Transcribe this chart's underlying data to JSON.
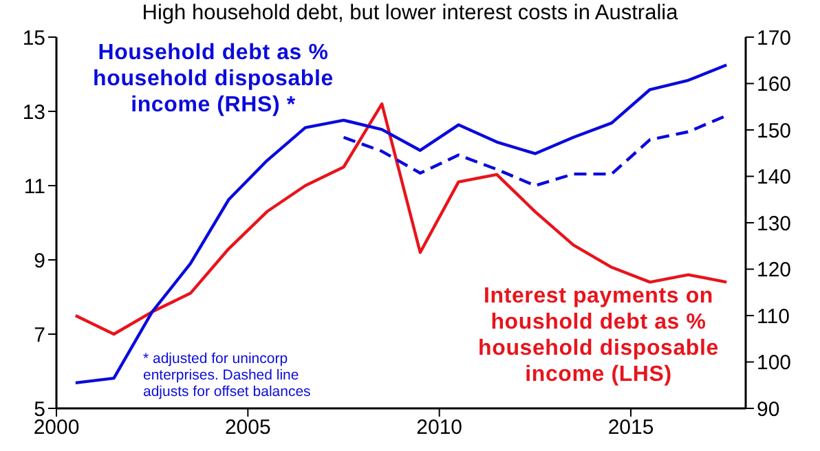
{
  "chart_data": {
    "type": "line",
    "title": "High household debt, but lower interest costs in Australia",
    "xlim": [
      2000,
      2018
    ],
    "xticks": [
      2000,
      2005,
      2010,
      2015
    ],
    "ylim": [
      5,
      15
    ],
    "yticks": [
      5,
      7,
      9,
      11,
      13,
      15
    ],
    "y2lim": [
      90,
      170
    ],
    "y2ticks": [
      90,
      100,
      110,
      120,
      130,
      140,
      150,
      160,
      170
    ],
    "series": [
      {
        "name": "Interest payments on houshold debt as % household disposable income (LHS)",
        "color": "#e8141c",
        "line_style": "solid",
        "x": [
          2000.5,
          2001.5,
          2002.5,
          2003.5,
          2004.5,
          2005.5,
          2006.5,
          2007.5,
          2008.5,
          2009.5,
          2010.5,
          2011.5,
          2012.5,
          2013.5,
          2014.5,
          2015.5,
          2016.5,
          2017.5
        ],
        "values": [
          7.5,
          7.0,
          7.6,
          8.1,
          9.3,
          10.3,
          11.0,
          11.5,
          13.2,
          9.2,
          11.1,
          11.3,
          10.3,
          9.4,
          8.8,
          8.4,
          8.6,
          8.4
        ]
      },
      {
        "name": "Household debt as % household disposable income (RHS) *",
        "color": "#0a0adc",
        "axis": "y2",
        "line_style": "solid",
        "x": [
          2000.5,
          2001.5,
          2002.5,
          2003.5,
          2004.5,
          2005.5,
          2006.5,
          2007.5,
          2008.5,
          2009.5,
          2010.5,
          2011.5,
          2012.5,
          2013.5,
          2014.5,
          2015.5,
          2016.5,
          2017.5
        ],
        "values": [
          95.5,
          96.5,
          110.8,
          121.2,
          135,
          143.4,
          150.5,
          152.1,
          150.1,
          145.6,
          151.1,
          147.4,
          144.9,
          148.4,
          151.5,
          158.7,
          160.7,
          164
        ]
      },
      {
        "color": "#0a0adc",
        "axis": "y2",
        "line_style": "dashed",
        "x": [
          2007.5,
          2008.5,
          2009.5,
          2010.5,
          2011.5,
          2012.5,
          2013.5,
          2014.5,
          2015.5,
          2016.5,
          2017.5
        ],
        "values": [
          148.4,
          145.4,
          140.7,
          144.6,
          141.5,
          138,
          140.5,
          140.5,
          147.9,
          149.6,
          153.1
        ]
      }
    ],
    "annotations": [
      "* adjusted for unincorp enterprises. Dashed line adjusts for offset balances"
    ]
  }
}
